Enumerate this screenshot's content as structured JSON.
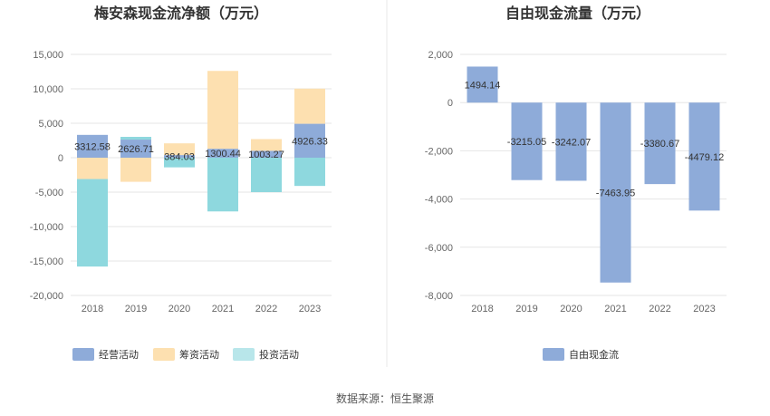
{
  "colors": {
    "operating": "#8eabd9",
    "financing": "#fde0b0",
    "investing": "#8ed8de",
    "investing_legend": "#b8e6ea",
    "free_cash": "#8eabd9",
    "grid": "#e6e6e6",
    "divider": "#e8e8e8"
  },
  "footer": "数据来源：恒生聚源",
  "chart_data": [
    {
      "type": "bar",
      "stacked": true,
      "title": "梅安森现金流净额（万元）",
      "categories": [
        "2018",
        "2019",
        "2020",
        "2021",
        "2022",
        "2023"
      ],
      "ylim": [
        -20000,
        15000
      ],
      "yticks": [
        15000,
        10000,
        5000,
        0,
        -5000,
        -10000,
        -15000,
        -20000
      ],
      "ytick_labels": [
        "15,000",
        "10,000",
        "5,000",
        "0",
        "-5,000",
        "-10,000",
        "-15,000",
        "-20,000"
      ],
      "series": [
        {
          "name": "经营活动",
          "key": "operating",
          "values": [
            3312.58,
            2626.71,
            384.03,
            1300.44,
            1003.27,
            4926.33
          ]
        },
        {
          "name": "筹资活动",
          "key": "financing",
          "values": [
            -3100,
            -3500,
            1700,
            11300,
            1700,
            5100
          ]
        },
        {
          "name": "投资活动",
          "key": "investing",
          "values": [
            -12700,
            400,
            -1400,
            -7800,
            -5000,
            -4100
          ]
        }
      ],
      "data_labels": [
        "3312.58",
        "2626.71",
        "384.03",
        "1300.44",
        "1003.27",
        "4926.33"
      ],
      "grid": true,
      "legend_position": "bottom"
    },
    {
      "type": "bar",
      "title": "自由现金流量（万元）",
      "categories": [
        "2018",
        "2019",
        "2020",
        "2021",
        "2022",
        "2023"
      ],
      "ylim": [
        -8000,
        2000
      ],
      "yticks": [
        2000,
        0,
        -2000,
        -4000,
        -6000,
        -8000
      ],
      "ytick_labels": [
        "2,000",
        "0",
        "-2,000",
        "-4,000",
        "-6,000",
        "-8,000"
      ],
      "series": [
        {
          "name": "自由现金流",
          "key": "free_cash",
          "values": [
            1494.14,
            -3215.05,
            -3242.07,
            -7463.95,
            -3380.67,
            -4479.12
          ]
        }
      ],
      "data_labels": [
        "1494.14",
        "-3215.05",
        "-3242.07",
        "-7463.95",
        "-3380.67",
        "-4479.12"
      ],
      "grid": true,
      "legend_position": "bottom"
    }
  ]
}
